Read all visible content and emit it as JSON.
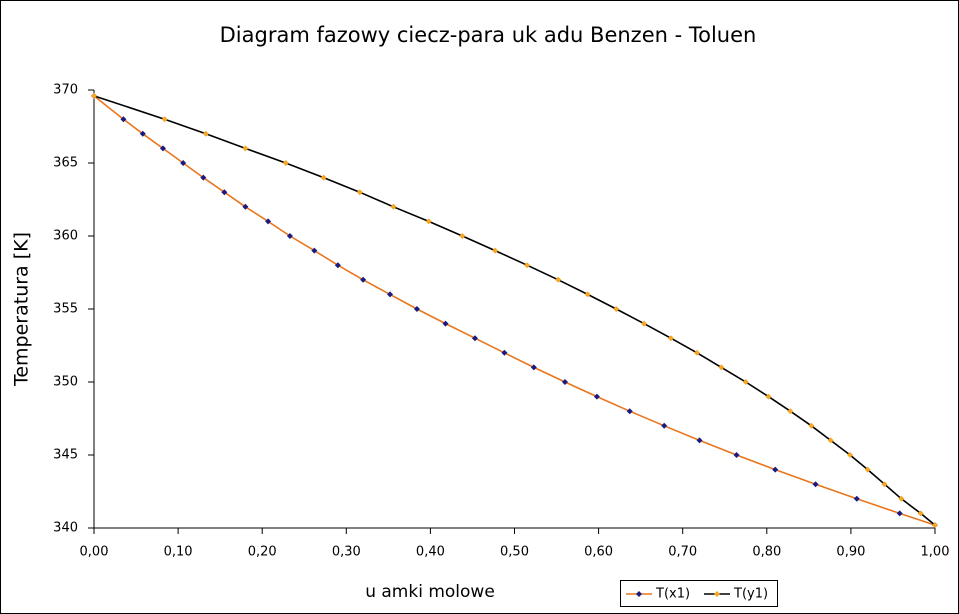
{
  "chart_data": {
    "type": "line",
    "title": "Diagram fazowy ciecz-para uk adu Benzen - Toluen",
    "x_label": "u amki molowe",
    "y_label": "Temperatura [K]",
    "xlim": [
      0,
      1
    ],
    "ylim": [
      340,
      370
    ],
    "xticks": [
      {
        "value": 0,
        "label": "0,00"
      },
      {
        "value": 0.1,
        "label": "0,10"
      },
      {
        "value": 0.2,
        "label": "0,20"
      },
      {
        "value": 0.3,
        "label": "0,30"
      },
      {
        "value": 0.4,
        "label": "0,40"
      },
      {
        "value": 0.5,
        "label": "0,50"
      },
      {
        "value": 0.6,
        "label": "0,60"
      },
      {
        "value": 0.7,
        "label": "0,70"
      },
      {
        "value": 0.8,
        "label": "0,80"
      },
      {
        "value": 0.9,
        "label": "0,90"
      },
      {
        "value": 1,
        "label": "1,00"
      }
    ],
    "yticks": [
      340,
      345,
      350,
      355,
      360,
      365,
      370
    ],
    "grid": false,
    "legend": "bottom-right",
    "series": [
      {
        "name": "T(x1)",
        "color": "#e8761e",
        "marker_color": "#1a1a80",
        "x": [
          0,
          0.035,
          0.058,
          0.082,
          0.106,
          0.13,
          0.155,
          0.18,
          0.207,
          0.233,
          0.262,
          0.29,
          0.32,
          0.352,
          0.384,
          0.418,
          0.453,
          0.488,
          0.523,
          0.56,
          0.598,
          0.637,
          0.678,
          0.72,
          0.764,
          0.81,
          0.858,
          0.907,
          0.958,
          1.0
        ],
        "values": [
          369.6,
          368,
          367,
          366,
          365,
          364,
          363,
          362,
          361,
          360,
          359,
          358,
          357,
          356,
          355,
          354,
          353,
          352,
          351,
          350,
          349,
          348,
          347,
          346,
          345,
          344,
          343,
          342,
          341,
          340.2
        ]
      },
      {
        "name": "T(y1)",
        "color": "#000000",
        "marker_color": "#f5a623",
        "x": [
          0,
          0.084,
          0.133,
          0.18,
          0.228,
          0.273,
          0.316,
          0.356,
          0.398,
          0.438,
          0.477,
          0.515,
          0.552,
          0.587,
          0.621,
          0.654,
          0.686,
          0.717,
          0.746,
          0.775,
          0.802,
          0.828,
          0.853,
          0.876,
          0.899,
          0.92,
          0.94,
          0.96,
          0.983,
          1.0
        ],
        "values": [
          369.6,
          368,
          367,
          366,
          365,
          364,
          363,
          362,
          361,
          360,
          359,
          358,
          357,
          356,
          355,
          354,
          353,
          352,
          351,
          350,
          349,
          348,
          347,
          346,
          345,
          344,
          343,
          342,
          341,
          340.2
        ]
      }
    ]
  }
}
